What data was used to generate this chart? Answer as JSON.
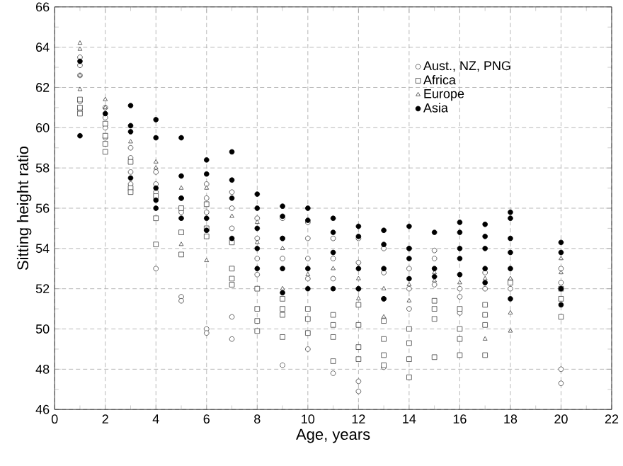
{
  "chart_data": {
    "type": "scatter",
    "xlabel": "Age, years",
    "ylabel": "Sitting height ratio",
    "xlim": [
      0,
      22
    ],
    "xticks": [
      0,
      2,
      4,
      6,
      8,
      10,
      12,
      14,
      16,
      18,
      20,
      22
    ],
    "ylim": [
      46,
      66
    ],
    "yticks": [
      46,
      48,
      50,
      52,
      54,
      56,
      58,
      60,
      62,
      64,
      66
    ],
    "grid": true,
    "legend": "top right",
    "series": [
      {
        "name": "Aust., NZ, PNG",
        "color": "#404040",
        "marker": "circle",
        "x": [
          1,
          1,
          1,
          1,
          1,
          2,
          2,
          2,
          2,
          3,
          3,
          3,
          3,
          4,
          4,
          4,
          4,
          5,
          5,
          5,
          5,
          6,
          6,
          6,
          6,
          6,
          7,
          7,
          7,
          7,
          7,
          8,
          8,
          8,
          8,
          9,
          9,
          9,
          9,
          10,
          10,
          10,
          10,
          10,
          11,
          11,
          11,
          11,
          12,
          12,
          12,
          12,
          12,
          13,
          13,
          13,
          13,
          14,
          14,
          14,
          14,
          15,
          15,
          15,
          16,
          16,
          16,
          17,
          17,
          18,
          18,
          20,
          20,
          20,
          20
        ],
        "values": [
          63.5,
          63.1,
          62.6,
          61.3,
          60.9,
          61.0,
          60.5,
          60.0,
          59.5,
          59.0,
          58.5,
          57.8,
          57.2,
          53.0,
          57.8,
          57.2,
          56.8,
          51.6,
          51.4,
          56.5,
          55.8,
          50.0,
          49.8,
          56.5,
          55.8,
          57.2,
          50.6,
          49.5,
          56.0,
          55.0,
          56.8,
          55.5,
          54.5,
          53.5,
          52.7,
          48.2,
          55.5,
          54.5,
          53.5,
          55.3,
          54.5,
          53.5,
          52.5,
          49.0,
          54.5,
          53.5,
          52.5,
          47.8,
          54.5,
          53.3,
          52.0,
          47.4,
          46.9,
          54.0,
          52.8,
          51.5,
          48.1,
          54.0,
          53.0,
          52.0,
          51.0,
          53.9,
          53.5,
          52.2,
          52.0,
          51.6,
          50.8,
          52.8,
          52.0,
          52.4,
          52.0,
          48.0,
          47.3,
          53.0,
          52.3
        ]
      },
      {
        "name": "Africa",
        "color": "#404040",
        "marker": "square",
        "x": [
          1,
          1,
          1,
          2,
          2,
          2,
          2,
          3,
          3,
          3,
          4,
          4,
          4,
          5,
          5,
          5,
          6,
          6,
          6,
          7,
          7,
          7,
          7,
          8,
          8,
          8,
          8,
          9,
          9,
          9,
          9,
          10,
          10,
          10,
          11,
          11,
          11,
          11,
          12,
          12,
          12,
          12,
          13,
          13,
          13,
          13,
          14,
          14,
          14,
          14,
          15,
          15,
          15,
          15,
          16,
          16,
          16,
          16,
          17,
          17,
          17,
          17,
          18,
          20,
          20,
          20
        ],
        "values": [
          61.4,
          61.0,
          60.7,
          59.2,
          58.8,
          59.6,
          60.2,
          57.0,
          56.8,
          58.3,
          55.5,
          54.2,
          56.6,
          54.8,
          53.7,
          56.0,
          55.0,
          54.6,
          56.2,
          53.0,
          52.5,
          52.2,
          54.3,
          52.0,
          51.0,
          50.4,
          49.9,
          51.5,
          51.0,
          50.7,
          49.6,
          51.0,
          50.5,
          49.8,
          50.7,
          50.2,
          49.6,
          48.4,
          51.2,
          50.2,
          49.1,
          48.5,
          50.4,
          49.5,
          48.7,
          48.2,
          50.0,
          49.3,
          48.5,
          47.6,
          51.4,
          51.0,
          50.5,
          48.6,
          51.0,
          50.0,
          49.5,
          48.7,
          51.2,
          50.7,
          50.2,
          48.7,
          52.3,
          50.6,
          51.5,
          52.0
        ]
      },
      {
        "name": "Europe",
        "color": "#404040",
        "marker": "triangle",
        "x": [
          1,
          1,
          1,
          1,
          2,
          2,
          3,
          4,
          4,
          5,
          5,
          6,
          6,
          7,
          8,
          8,
          9,
          9,
          10,
          11,
          12,
          12,
          13,
          13,
          14,
          14,
          15,
          15,
          16,
          17,
          17,
          18,
          18,
          18,
          20,
          20
        ],
        "values": [
          64.2,
          63.9,
          62.6,
          61.9,
          61.4,
          61.0,
          59.3,
          58.3,
          58.0,
          54.2,
          57.0,
          53.4,
          57.0,
          55.6,
          54.3,
          55.3,
          54.0,
          52.0,
          52.7,
          53.0,
          52.5,
          51.5,
          52.0,
          50.6,
          52.2,
          51.4,
          52.8,
          52.4,
          52.3,
          49.5,
          52.5,
          50.8,
          49.9,
          52.5,
          53.5,
          52.8
        ]
      },
      {
        "name": "Asia",
        "color": "#000000",
        "marker": "circle",
        "x": [
          1,
          1,
          2,
          3,
          3,
          3,
          3,
          4,
          4,
          4,
          4,
          4,
          5,
          5,
          5,
          5,
          6,
          6,
          6,
          6,
          7,
          7,
          7,
          7,
          8,
          8,
          8,
          8,
          8,
          9,
          9,
          9,
          9,
          9,
          10,
          10,
          10,
          10,
          11,
          11,
          11,
          11,
          12,
          12,
          12,
          12,
          13,
          13,
          13,
          13,
          14,
          14,
          14,
          14,
          15,
          15,
          15,
          16,
          16,
          16,
          16,
          16,
          17,
          17,
          17,
          17,
          17,
          18,
          18,
          18,
          18,
          18,
          18,
          20,
          20,
          20,
          20
        ],
        "values": [
          59.6,
          63.3,
          60.7,
          61.1,
          60.1,
          59.8,
          57.5,
          60.4,
          59.5,
          56.4,
          56.0,
          57.0,
          59.5,
          57.6,
          55.5,
          56.5,
          58.4,
          57.7,
          55.5,
          54.9,
          58.8,
          57.4,
          56.5,
          54.5,
          56.7,
          56.0,
          55.0,
          54.0,
          53.0,
          56.1,
          55.6,
          54.5,
          53.0,
          51.8,
          56.0,
          55.4,
          53.0,
          52.0,
          55.5,
          54.8,
          53.8,
          52.0,
          55.1,
          54.6,
          53.0,
          52.0,
          54.9,
          54.2,
          53.0,
          51.5,
          55.1,
          54.0,
          53.5,
          52.5,
          54.8,
          53.0,
          52.6,
          55.3,
          54.8,
          54.0,
          53.5,
          52.7,
          55.2,
          54.6,
          54.0,
          53.0,
          52.3,
          55.8,
          55.5,
          54.5,
          53.8,
          53.0,
          51.5,
          54.3,
          53.8,
          52.0,
          51.2
        ]
      }
    ]
  }
}
